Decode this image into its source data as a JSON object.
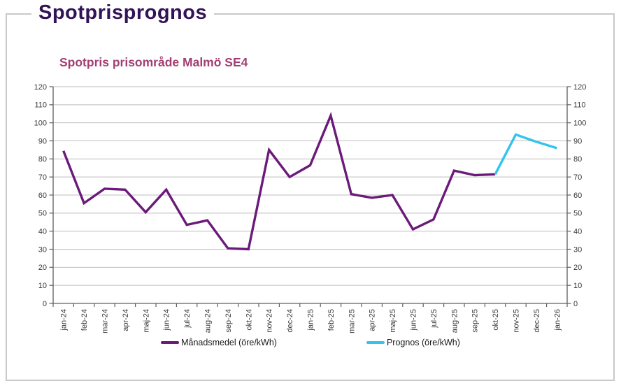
{
  "page": {
    "title": "Spotprisprognos",
    "title_color": "#321356",
    "frame_border_color": "#c9c9c9",
    "background_color": "#ffffff"
  },
  "chart_data": {
    "type": "line",
    "title": "Spotpris prisområde Malmö SE4",
    "title_color": "#a23e72",
    "xlabel": "",
    "ylabel": "",
    "categories": [
      "jan-24",
      "feb-24",
      "mar-24",
      "apr-24",
      "maj-24",
      "jun-24",
      "jul-24",
      "aug-24",
      "sep-24",
      "okt-24",
      "nov-24",
      "dec-24",
      "jan-25",
      "feb-25",
      "mar-25",
      "apr-25",
      "maj-25",
      "jun-25",
      "jul-25",
      "aug-25",
      "sep-25",
      "okt-25",
      "nov-25",
      "dec-25",
      "jan-26"
    ],
    "series": [
      {
        "name": "Månadsmedel (öre/kWh)",
        "color": "#6b1a7a",
        "values": [
          84.5,
          55.5,
          63.5,
          63,
          50.5,
          63,
          43.5,
          46,
          30.5,
          30,
          85,
          70,
          76.5,
          104,
          60.5,
          58.5,
          60,
          41,
          46.5,
          73.5,
          71,
          71.5,
          null,
          null,
          null
        ]
      },
      {
        "name": "Prognos (öre/kWh)",
        "color": "#33c4ee",
        "values": [
          null,
          null,
          null,
          null,
          null,
          null,
          null,
          null,
          null,
          null,
          null,
          null,
          null,
          null,
          null,
          null,
          null,
          null,
          null,
          null,
          null,
          71.5,
          93.5,
          89.5,
          86
        ]
      }
    ],
    "ylim": [
      0,
      120
    ],
    "yticks": [
      0,
      10,
      20,
      30,
      40,
      50,
      60,
      70,
      80,
      90,
      100,
      110,
      120
    ],
    "y_axis_sides": [
      "left",
      "right"
    ],
    "grid": "horizontal",
    "grid_color": "#bdbdbd",
    "axis_color": "#5f5f5f",
    "tick_label_color": "#3a3a3a",
    "legend_position": "bottom"
  }
}
